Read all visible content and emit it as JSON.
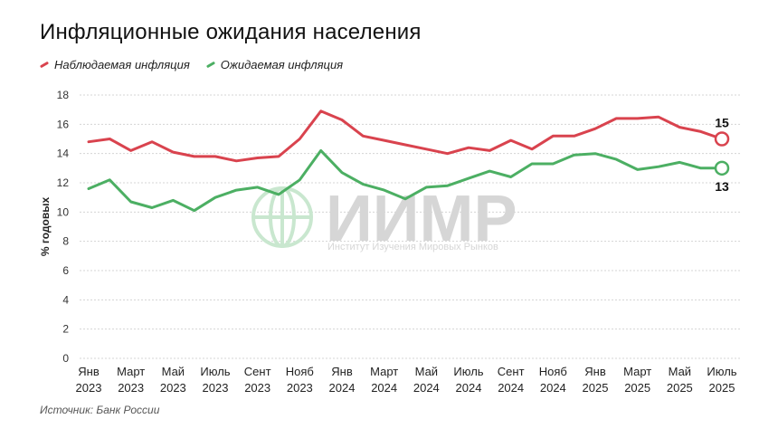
{
  "colors": {
    "observed": "#d9434e",
    "expected": "#4caf63",
    "grid": "#d4d4d4",
    "watermark": "#d6d6d6",
    "watermark_logo": "#c9e7cf"
  },
  "chart_data": {
    "type": "line",
    "title": "Инфляционные ожидания населения",
    "ylabel": "% годовых",
    "xlabel": "",
    "ylim": [
      0,
      18
    ],
    "yticks": [
      0,
      2,
      4,
      6,
      8,
      10,
      12,
      14,
      16,
      18
    ],
    "grid": true,
    "legend_position": "top-left",
    "x_tick_labels": [
      {
        "month": "Янв",
        "year": "2023"
      },
      {
        "month": "Март",
        "year": "2023"
      },
      {
        "month": "Май",
        "year": "2023"
      },
      {
        "month": "Июль",
        "year": "2023"
      },
      {
        "month": "Сент",
        "year": "2023"
      },
      {
        "month": "Нояб",
        "year": "2023"
      },
      {
        "month": "Янв",
        "year": "2024"
      },
      {
        "month": "Март",
        "year": "2024"
      },
      {
        "month": "Май",
        "year": "2024"
      },
      {
        "month": "Июль",
        "year": "2024"
      },
      {
        "month": "Сент",
        "year": "2024"
      },
      {
        "month": "Нояб",
        "year": "2024"
      },
      {
        "month": "Янв",
        "year": "2025"
      },
      {
        "month": "Март",
        "year": "2025"
      },
      {
        "month": "Май",
        "year": "2025"
      },
      {
        "month": "Июль",
        "year": "2025"
      }
    ],
    "x": [
      "2023-01",
      "2023-02",
      "2023-03",
      "2023-04",
      "2023-05",
      "2023-06",
      "2023-07",
      "2023-08",
      "2023-09",
      "2023-10",
      "2023-11",
      "2023-12",
      "2024-01",
      "2024-02",
      "2024-03",
      "2024-04",
      "2024-05",
      "2024-06",
      "2024-07",
      "2024-08",
      "2024-09",
      "2024-10",
      "2024-11",
      "2024-12",
      "2025-01",
      "2025-02",
      "2025-03",
      "2025-04",
      "2025-05",
      "2025-06",
      "2025-07"
    ],
    "series": [
      {
        "name": "Наблюдаемая инфляция",
        "values": [
          14.8,
          15.0,
          14.2,
          14.8,
          14.1,
          13.8,
          13.8,
          13.5,
          13.7,
          13.8,
          15.0,
          16.9,
          16.3,
          15.2,
          14.9,
          14.6,
          14.3,
          14.0,
          14.4,
          14.2,
          14.9,
          14.3,
          15.2,
          15.2,
          15.7,
          16.4,
          16.4,
          16.5,
          15.8,
          15.5,
          15.0
        ],
        "end_label": "15"
      },
      {
        "name": "Ожидаемая инфляция",
        "values": [
          11.6,
          12.2,
          10.7,
          10.3,
          10.8,
          10.1,
          11.0,
          11.5,
          11.7,
          11.2,
          12.2,
          14.2,
          12.7,
          11.9,
          11.5,
          10.9,
          11.7,
          11.8,
          12.3,
          12.8,
          12.4,
          13.3,
          13.3,
          13.9,
          14.0,
          13.6,
          12.9,
          13.1,
          13.4,
          13.0,
          13.0
        ],
        "end_label": "13"
      }
    ],
    "source": "Источник: Банк России"
  },
  "watermark": {
    "brand": "ИИМР",
    "tagline": "Институт Изучения Мировых Рынков"
  }
}
